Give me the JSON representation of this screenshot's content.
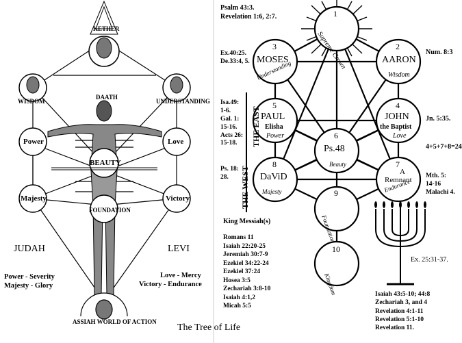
{
  "caption": "The Tree of Life",
  "left_figure": {
    "nodes": {
      "power": "Power",
      "love": "Love",
      "beauty": "BEAUTY",
      "majesty": "Majesty",
      "victory": "Victory"
    },
    "tribes": {
      "judah": "JUDAH",
      "levi": "LEVI"
    },
    "left_notes": [
      "Power - Severity",
      "Majesty - Glory"
    ],
    "right_notes": [
      "Love - Mercy",
      "Victory - Endurance"
    ],
    "small_labels": {
      "crown": "KETHER",
      "daath": "DAATH",
      "wisdom": "WISDOM",
      "understanding": "UNDERSTANDING",
      "foundation": "FOUNDATION",
      "malkuth": "ASSIAH WORLD OF ACTION"
    }
  },
  "right_figure": {
    "top_refs": [
      "Psalm 43:3.",
      "Revelation 1:6, 2:7."
    ],
    "sephiroth": [
      {
        "num": "1",
        "name": "",
        "sub": "Supreme Crown"
      },
      {
        "num": "2",
        "name": "AARON",
        "sub": "Wisdom"
      },
      {
        "num": "3",
        "name": "MOSES",
        "sub": "Understanding"
      },
      {
        "num": "4",
        "name": "JOHN",
        "name2": "the Baptist",
        "sub": "Love"
      },
      {
        "num": "5",
        "name": "PAUL",
        "name2": "Elisha",
        "sub": "Power"
      },
      {
        "num": "6",
        "name": "Ps.48",
        "sub": "Beauty"
      },
      {
        "num": "7",
        "name": "A",
        "name2": "Remnant",
        "sub": "Endurance"
      },
      {
        "num": "8",
        "name": "DaViD",
        "sub": "Majesty"
      },
      {
        "num": "9",
        "name": "",
        "sub": "Foundation"
      },
      {
        "num": "10",
        "name": "",
        "sub": "Kingdom"
      }
    ],
    "side_refs": {
      "num8": "Num. 8:3",
      "ex40": [
        "Ex.40:25.",
        "De.33:4, 5."
      ],
      "isa49": [
        "Isa.49:",
        "1-6.",
        "Gal. 1:",
        "15-16.",
        "Acts 26:",
        "15-18."
      ],
      "jn": "Jn. 5:35.",
      "sum": "4+5+7+8=24",
      "ps18": [
        "Ps. 18:",
        "28."
      ],
      "mth": [
        "Mth. 5:",
        "14-16",
        "Malachi 4."
      ],
      "ex25": "Ex. 25:31-37."
    },
    "vertical": {
      "east": "THE EAST",
      "west": "THE WEST"
    },
    "messiah_title": "King Messiah(s)",
    "messiah_refs": [
      "Romans 11",
      "Isaiah 22:20-25",
      "Jeremiah 30:7-9",
      "Ezekiel 34:22-24",
      "Ezekiel 37:24",
      "Hosea 3:5",
      "Zechariah 3:8-10",
      "Isaiah 4:1,2",
      "Micah 5:5"
    ],
    "bottom_refs": [
      "Isaiah 43:5-10; 44:8",
      "Zechariah 3, and 4",
      "Revelation 4:1-11",
      "Revelation 5:1-10",
      "Revelation 11."
    ]
  }
}
